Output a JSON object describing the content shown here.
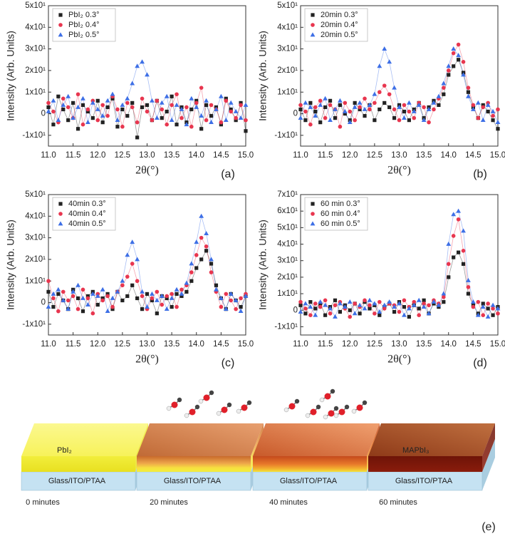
{
  "chart_data": [
    {
      "type": "line",
      "panel_label": "(a)",
      "x_label": "2θ(°)",
      "y_label": "Intensity (Arb. Units)",
      "x": [
        11,
        11.1,
        11.2,
        11.3,
        11.4,
        11.5,
        11.6,
        11.7,
        11.8,
        11.9,
        12,
        12.1,
        12.2,
        12.3,
        12.4,
        12.5,
        12.6,
        12.7,
        12.8,
        12.9,
        13,
        13.1,
        13.2,
        13.3,
        13.4,
        13.5,
        13.6,
        13.7,
        13.8,
        13.9,
        14,
        14.1,
        14.2,
        14.3,
        14.4,
        14.5,
        14.6,
        14.7,
        14.8,
        14.9,
        15
      ],
      "series": [
        {
          "name": "PbI₂ 0.3°",
          "color": "#222222",
          "marker": "square",
          "values": [
            3,
            -5,
            8,
            2,
            -3,
            5,
            -7,
            4,
            1,
            -2,
            6,
            -4,
            3,
            7,
            -6,
            2,
            -1,
            5,
            -11,
            3,
            4,
            -3,
            6,
            -2,
            1,
            8,
            -5,
            3,
            -4,
            2,
            6,
            -7,
            4,
            -1,
            3,
            -5,
            7,
            2,
            -3,
            5,
            -8
          ]
        },
        {
          "name": "PbI₂ 0.4°",
          "color": "#e8364f",
          "marker": "circle",
          "values": [
            5,
            1,
            -4,
            7,
            3,
            -2,
            9,
            -5,
            2,
            6,
            -3,
            4,
            -1,
            8,
            2,
            -6,
            5,
            3,
            -4,
            7,
            1,
            -3,
            6,
            2,
            -5,
            4,
            9,
            -2,
            3,
            -6,
            5,
            12,
            -3,
            4,
            2,
            -4,
            6,
            1,
            -2,
            4,
            -3
          ]
        },
        {
          "name": "PbI₂ 0.5°",
          "color": "#3d6fe6",
          "marker": "triangle",
          "values": [
            1,
            6,
            -3,
            4,
            8,
            -2,
            3,
            7,
            -4,
            5,
            2,
            -1,
            6,
            9,
            -3,
            4,
            7,
            14,
            22,
            24,
            18,
            6,
            -2,
            5,
            8,
            -3,
            4,
            2,
            -5,
            7,
            3,
            -1,
            6,
            -4,
            2,
            8,
            -3,
            5,
            1,
            -2,
            4
          ]
        }
      ],
      "xlim": [
        11,
        15
      ],
      "xticks": [
        {
          "value": 11,
          "label": "11.0"
        },
        11.5,
        {
          "value": 12,
          "label": "12.0"
        },
        12.5,
        {
          "value": 13,
          "label": "13.0"
        },
        13.5,
        {
          "value": 14,
          "label": "14.0"
        },
        14.5,
        {
          "value": 15,
          "label": "15.0"
        }
      ],
      "ylim": [
        -15,
        50
      ],
      "yticks": [
        {
          "value": -10,
          "label": "-1x10¹"
        },
        0,
        {
          "value": 10,
          "label": "1x10¹"
        },
        {
          "value": 20,
          "label": "2x10¹"
        },
        {
          "value": 30,
          "label": "3x10¹"
        },
        {
          "value": 40,
          "label": "4x10¹"
        },
        {
          "value": 50,
          "label": "5x10¹"
        }
      ],
      "legend": "upper left"
    },
    {
      "type": "line",
      "panel_label": "(b)",
      "x_label": "2θ(°)",
      "y_label": "Intensity (Arb. Units)",
      "x": [
        11,
        11.1,
        11.2,
        11.3,
        11.4,
        11.5,
        11.6,
        11.7,
        11.8,
        11.9,
        12,
        12.1,
        12.2,
        12.3,
        12.4,
        12.5,
        12.6,
        12.7,
        12.8,
        12.9,
        13,
        13.1,
        13.2,
        13.3,
        13.4,
        13.5,
        13.6,
        13.7,
        13.8,
        13.9,
        14,
        14.1,
        14.2,
        14.3,
        14.4,
        14.5,
        14.6,
        14.7,
        14.8,
        14.9,
        15
      ],
      "series": [
        {
          "name": "20min 0.3°",
          "color": "#222222",
          "marker": "square",
          "values": [
            2,
            -3,
            5,
            1,
            -4,
            3,
            6,
            -2,
            4,
            0,
            -3,
            5,
            2,
            -1,
            4,
            -3,
            2,
            5,
            3,
            -2,
            4,
            1,
            -3,
            2,
            5,
            -2,
            3,
            6,
            4,
            9,
            18,
            22,
            25,
            19,
            10,
            3,
            -2,
            4,
            1,
            -3,
            -7
          ]
        },
        {
          "name": "20min 0.4°",
          "color": "#e8364f",
          "marker": "circle",
          "values": [
            4,
            1,
            -5,
            3,
            6,
            -2,
            4,
            2,
            -6,
            5,
            1,
            -3,
            3,
            7,
            2,
            5,
            10,
            13,
            9,
            2,
            -3,
            4,
            1,
            -2,
            5,
            3,
            -4,
            2,
            7,
            12,
            20,
            28,
            32,
            24,
            12,
            4,
            -2,
            3,
            5,
            -1,
            2
          ]
        },
        {
          "name": "20min 0.5°",
          "color": "#3d6fe6",
          "marker": "triangle",
          "values": [
            -2,
            5,
            3,
            -1,
            4,
            7,
            -3,
            2,
            6,
            1,
            -4,
            3,
            5,
            2,
            4,
            9,
            22,
            30,
            24,
            12,
            3,
            -2,
            5,
            1,
            4,
            -3,
            2,
            5,
            8,
            14,
            22,
            30,
            27,
            18,
            8,
            2,
            5,
            -3,
            4,
            1,
            -4
          ]
        }
      ],
      "xlim": [
        11,
        15
      ],
      "xticks": [
        {
          "value": 11,
          "label": "11.0"
        },
        11.5,
        {
          "value": 12,
          "label": "12.0"
        },
        12.5,
        {
          "value": 13,
          "label": "13.0"
        },
        13.5,
        {
          "value": 14,
          "label": "14.0"
        },
        14.5,
        {
          "value": 15,
          "label": "15.0"
        }
      ],
      "ylim": [
        -15,
        50
      ],
      "yticks": [
        {
          "value": -10,
          "label": "-1x10¹"
        },
        0,
        {
          "value": 10,
          "label": "1x10¹"
        },
        {
          "value": 20,
          "label": "2x10¹"
        },
        {
          "value": 30,
          "label": "3x10¹"
        },
        {
          "value": 40,
          "label": "4x10¹"
        },
        {
          "value": 50,
          "label": "5x10¹"
        }
      ],
      "legend": "upper left"
    },
    {
      "type": "line",
      "panel_label": "(c)",
      "x_label": "2θ(°)",
      "y_label": "Intensity (Arb. Units)",
      "x": [
        11,
        11.1,
        11.2,
        11.3,
        11.4,
        11.5,
        11.6,
        11.7,
        11.8,
        11.9,
        12,
        12.1,
        12.2,
        12.3,
        12.4,
        12.5,
        12.6,
        12.7,
        12.8,
        12.9,
        13,
        13.1,
        13.2,
        13.3,
        13.4,
        13.5,
        13.6,
        13.7,
        13.8,
        13.9,
        14,
        14.1,
        14.2,
        14.3,
        14.4,
        14.5,
        14.6,
        14.7,
        14.8,
        14.9,
        15
      ],
      "series": [
        {
          "name": "40min 0.3°",
          "color": "#222222",
          "marker": "square",
          "values": [
            5,
            -2,
            4,
            1,
            -3,
            6,
            2,
            -4,
            3,
            5,
            -1,
            2,
            4,
            -3,
            5,
            1,
            3,
            8,
            2,
            -3,
            4,
            1,
            -5,
            3,
            2,
            -2,
            4,
            3,
            5,
            10,
            16,
            20,
            24,
            18,
            8,
            2,
            -3,
            4,
            1,
            -2,
            3
          ]
        },
        {
          "name": "40min 0.4°",
          "color": "#e8364f",
          "marker": "circle",
          "values": [
            10,
            2,
            -4,
            5,
            1,
            3,
            -3,
            6,
            2,
            -5,
            4,
            1,
            3,
            -2,
            5,
            8,
            12,
            18,
            10,
            3,
            -3,
            2,
            5,
            -1,
            3,
            4,
            -2,
            6,
            8,
            14,
            22,
            30,
            26,
            14,
            5,
            -2,
            4,
            1,
            -3,
            2,
            4
          ]
        },
        {
          "name": "40min 0.5°",
          "color": "#3d6fe6",
          "marker": "triangle",
          "values": [
            -2,
            4,
            6,
            1,
            -3,
            5,
            8,
            2,
            -1,
            4,
            3,
            6,
            -4,
            2,
            5,
            10,
            22,
            28,
            20,
            5,
            -2,
            4,
            1,
            3,
            -3,
            2,
            6,
            4,
            9,
            18,
            28,
            40,
            32,
            20,
            6,
            2,
            -3,
            4,
            1,
            -4,
            3
          ]
        }
      ],
      "xlim": [
        11,
        15
      ],
      "xticks": [
        {
          "value": 11,
          "label": "11.0"
        },
        11.5,
        {
          "value": 12,
          "label": "12.0"
        },
        12.5,
        {
          "value": 13,
          "label": "13.0"
        },
        13.5,
        {
          "value": 14,
          "label": "14.0"
        },
        14.5,
        {
          "value": 15,
          "label": "15.0"
        }
      ],
      "ylim": [
        -15,
        50
      ],
      "yticks": [
        {
          "value": -10,
          "label": "-1x10¹"
        },
        0,
        {
          "value": 10,
          "label": "1x10¹"
        },
        {
          "value": 20,
          "label": "2x10¹"
        },
        {
          "value": 30,
          "label": "3x10¹"
        },
        {
          "value": 40,
          "label": "4x10¹"
        },
        {
          "value": 50,
          "label": "5x10¹"
        }
      ],
      "legend": "upper left"
    },
    {
      "type": "line",
      "panel_label": "(d)",
      "x_label": "2θ(°)",
      "y_label": "Intensity (Arb. Units)",
      "x": [
        11,
        11.1,
        11.2,
        11.3,
        11.4,
        11.5,
        11.6,
        11.7,
        11.8,
        11.9,
        12,
        12.1,
        12.2,
        12.3,
        12.4,
        12.5,
        12.6,
        12.7,
        12.8,
        12.9,
        13,
        13.1,
        13.2,
        13.3,
        13.4,
        13.5,
        13.6,
        13.7,
        13.8,
        13.9,
        14,
        14.1,
        14.2,
        14.3,
        14.4,
        14.5,
        14.6,
        14.7,
        14.8,
        14.9,
        15
      ],
      "series": [
        {
          "name": "60 min 0.3°",
          "color": "#222222",
          "marker": "square",
          "values": [
            3,
            -2,
            5,
            1,
            4,
            -3,
            2,
            6,
            -1,
            3,
            0,
            4,
            -2,
            5,
            1,
            3,
            -3,
            2,
            4,
            -1,
            5,
            2,
            -4,
            3,
            1,
            6,
            -2,
            4,
            2,
            5,
            20,
            32,
            35,
            28,
            10,
            3,
            -2,
            4,
            1,
            -3,
            2
          ]
        },
        {
          "name": "60 min 0.4°",
          "color": "#e8364f",
          "marker": "circle",
          "values": [
            5,
            1,
            -3,
            4,
            2,
            6,
            -2,
            3,
            5,
            1,
            -4,
            4,
            2,
            6,
            3,
            -2,
            5,
            1,
            4,
            3,
            -1,
            6,
            2,
            5,
            -3,
            4,
            3,
            6,
            4,
            8,
            28,
            45,
            55,
            36,
            14,
            2,
            5,
            -3,
            4,
            1,
            -2
          ]
        },
        {
          "name": "60 min 0.5°",
          "color": "#3d6fe6",
          "marker": "triangle",
          "values": [
            -1,
            4,
            2,
            -3,
            5,
            3,
            1,
            -4,
            4,
            2,
            5,
            -2,
            3,
            1,
            6,
            4,
            -1,
            3,
            5,
            2,
            4,
            -3,
            1,
            3,
            6,
            2,
            -2,
            5,
            3,
            10,
            40,
            58,
            60,
            48,
            18,
            5,
            -3,
            2,
            -4,
            3,
            1
          ]
        }
      ],
      "xlim": [
        11,
        15
      ],
      "xticks": [
        {
          "value": 11,
          "label": "11.0"
        },
        11.5,
        {
          "value": 12,
          "label": "12.0"
        },
        12.5,
        {
          "value": 13,
          "label": "13.0"
        },
        13.5,
        {
          "value": 14,
          "label": "14.0"
        },
        14.5,
        {
          "value": 15,
          "label": "15.0"
        }
      ],
      "ylim": [
        -15,
        70
      ],
      "yticks": [
        {
          "value": -10,
          "label": "-1x10¹"
        },
        0,
        {
          "value": 10,
          "label": "1x10¹"
        },
        {
          "value": 20,
          "label": "2x10¹"
        },
        {
          "value": 30,
          "label": "3x10¹"
        },
        {
          "value": 40,
          "label": "4x10¹"
        },
        {
          "value": 50,
          "label": "5x10¹"
        },
        {
          "value": 60,
          "label": "6x10¹"
        },
        {
          "value": 70,
          "label": "7x10¹"
        }
      ],
      "legend": "upper left"
    }
  ],
  "diagram": {
    "panel_label": "(e)",
    "stages": [
      {
        "time": "0 minutes",
        "top_label": "PbI₂",
        "base_label": "Glass/ITO/PTAA"
      },
      {
        "time": "20 minutes",
        "base_label": "Glass/ITO/PTAA"
      },
      {
        "time": "40 minutes",
        "base_label": "Glass/ITO/PTAA"
      },
      {
        "time": "60 minutes",
        "top_label": "MAPbI₃",
        "base_label": "Glass/ITO/PTAA"
      }
    ]
  }
}
